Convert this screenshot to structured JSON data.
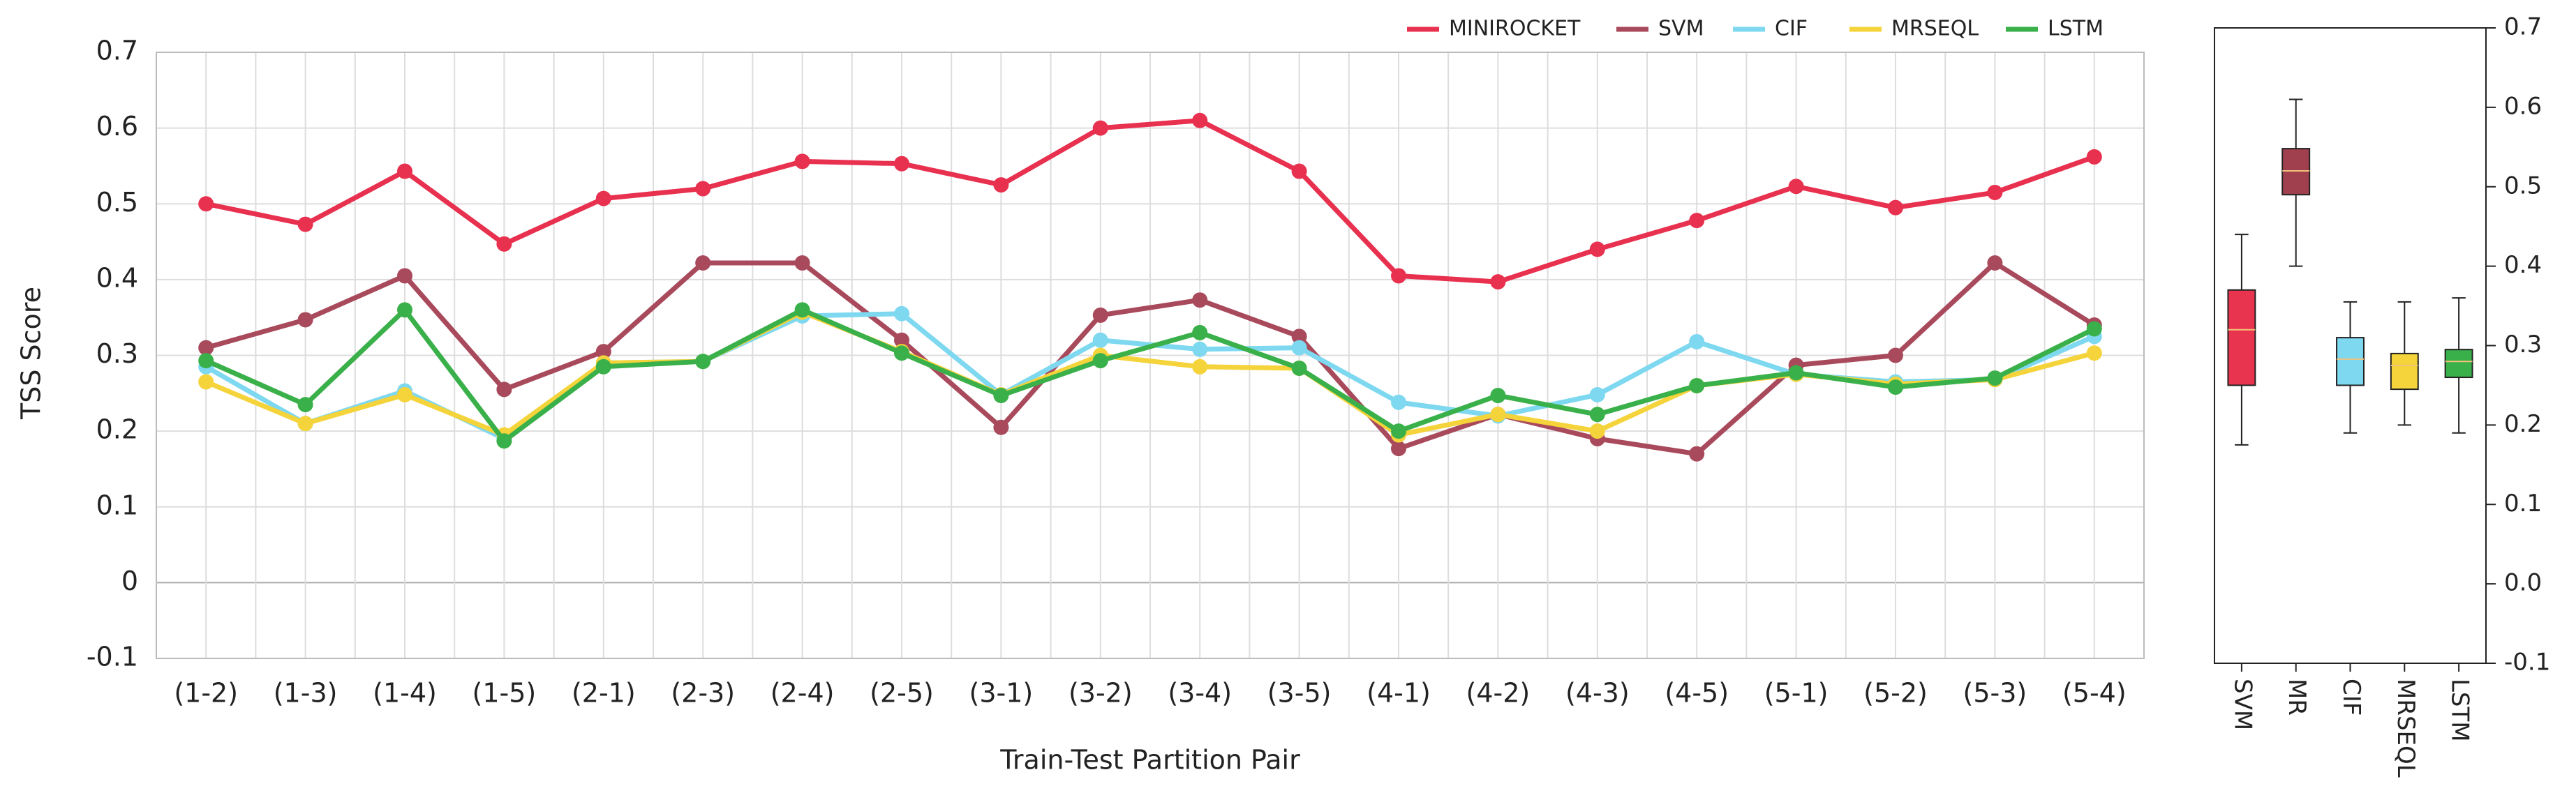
{
  "chart_data": [
    {
      "type": "line",
      "xlabel": "Train-Test Partition Pair",
      "ylabel": "TSS Score",
      "categories": [
        "(1-2)",
        "(1-3)",
        "(1-4)",
        "(1-5)",
        "(2-1)",
        "(2-3)",
        "(2-4)",
        "(2-5)",
        "(3-1)",
        "(3-2)",
        "(3-4)",
        "(3-5)",
        "(4-1)",
        "(4-2)",
        "(4-3)",
        "(4-5)",
        "(5-1)",
        "(5-2)",
        "(5-3)",
        "(5-4)"
      ],
      "series": [
        {
          "name": "MINIROCKET",
          "color": "#e8304f",
          "values": [
            0.5,
            0.473,
            0.543,
            0.447,
            0.507,
            0.52,
            0.556,
            0.553,
            0.525,
            0.6,
            0.61,
            0.543,
            0.405,
            0.397,
            0.44,
            0.478,
            0.523,
            0.495,
            0.515,
            0.562
          ]
        },
        {
          "name": "SVM",
          "color": "#a84a5c",
          "values": [
            0.31,
            0.347,
            0.405,
            0.255,
            0.305,
            0.422,
            0.422,
            0.32,
            0.205,
            0.353,
            0.373,
            0.325,
            0.177,
            0.222,
            0.19,
            0.17,
            0.287,
            0.3,
            0.422,
            0.34
          ]
        },
        {
          "name": "CIF",
          "color": "#7dd8f0",
          "values": [
            0.285,
            0.21,
            0.253,
            0.19,
            0.29,
            0.292,
            0.352,
            0.355,
            0.248,
            0.32,
            0.308,
            0.31,
            0.238,
            0.22,
            0.248,
            0.318,
            0.275,
            0.265,
            0.268,
            0.325
          ]
        },
        {
          "name": "MRSEQL",
          "color": "#f5d33a",
          "values": [
            0.265,
            0.21,
            0.248,
            0.195,
            0.29,
            0.292,
            0.357,
            0.305,
            0.248,
            0.3,
            0.285,
            0.283,
            0.195,
            0.222,
            0.2,
            0.26,
            0.275,
            0.262,
            0.268,
            0.303
          ]
        },
        {
          "name": "LSTM",
          "color": "#3ab04a",
          "values": [
            0.293,
            0.235,
            0.36,
            0.187,
            0.285,
            0.292,
            0.36,
            0.303,
            0.247,
            0.293,
            0.33,
            0.283,
            0.2,
            0.247,
            0.222,
            0.26,
            0.277,
            0.258,
            0.27,
            0.335
          ]
        }
      ],
      "ylim": [
        -0.1,
        0.7
      ],
      "yticks": [
        -0.1,
        0,
        0.1,
        0.2,
        0.3,
        0.4,
        0.5,
        0.6,
        0.7
      ],
      "grid": true,
      "legend": "top-right"
    },
    {
      "type": "box",
      "categories": [
        "SVM",
        "MR",
        "CIF",
        "MRSEQL",
        "LSTM"
      ],
      "boxes": [
        {
          "color": "#e8344e",
          "min": 0.175,
          "q1": 0.25,
          "median": 0.32,
          "q3": 0.37,
          "max": 0.44
        },
        {
          "color": "#a0404f",
          "min": 0.4,
          "q1": 0.49,
          "median": 0.52,
          "q3": 0.548,
          "max": 0.61
        },
        {
          "color": "#7dd8f0",
          "min": 0.19,
          "q1": 0.25,
          "median": 0.283,
          "q3": 0.31,
          "max": 0.355
        },
        {
          "color": "#f5d33a",
          "min": 0.2,
          "q1": 0.245,
          "median": 0.275,
          "q3": 0.29,
          "max": 0.355
        },
        {
          "color": "#3ab04a",
          "min": 0.19,
          "q1": 0.26,
          "median": 0.28,
          "q3": 0.295,
          "max": 0.36
        }
      ],
      "ylim": [
        -0.1,
        0.7
      ],
      "yticks": [
        -0.1,
        {
          "value": 0,
          "label": "0.0"
        },
        0.1,
        0.2,
        0.3,
        0.4,
        0.5,
        0.6,
        0.7
      ]
    }
  ]
}
